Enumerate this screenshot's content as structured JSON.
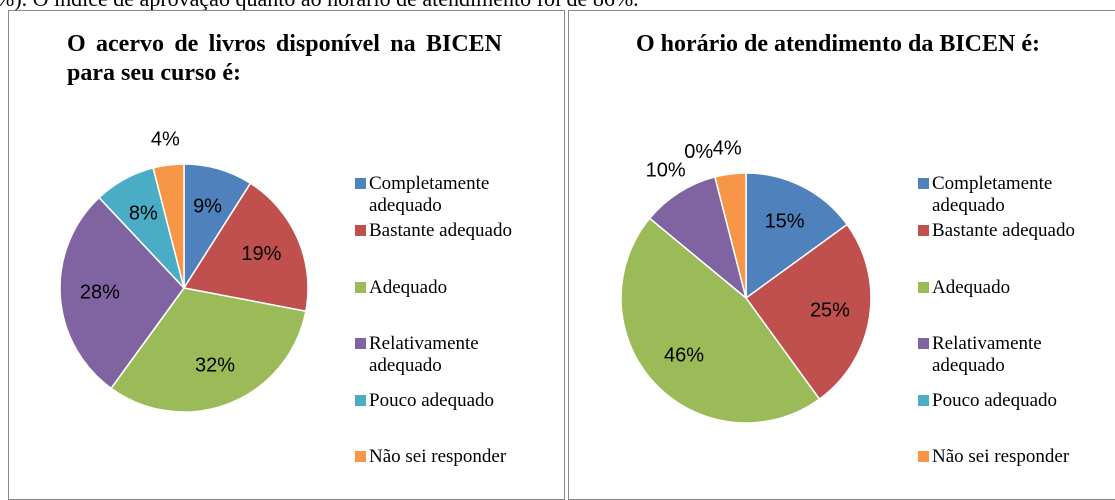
{
  "intro_text": "%). O índice de aprovação quanto ao horário de atendimento foi de 86%.",
  "chart_data": [
    {
      "type": "pie",
      "title": "O acervo de livros disponível na BICEN para seu curso é:",
      "categories": [
        "Completamente adequado",
        "Bastante adequado",
        "Adequado",
        "Relativamente adequado",
        "Pouco adequado",
        "Não sei responder"
      ],
      "values": [
        9,
        19,
        32,
        28,
        8,
        4
      ],
      "value_labels": [
        "9%",
        "19%",
        "32%",
        "28%",
        "8%",
        "4%"
      ],
      "colors": [
        "#4f81bd",
        "#c0504d",
        "#9bbb59",
        "#8064a2",
        "#4bacc6",
        "#f79646"
      ],
      "legend": "right"
    },
    {
      "type": "pie",
      "title": "O horário de atendimento da BICEN é:",
      "categories": [
        "Completamente adequado",
        "Bastante adequado",
        "Adequado",
        "Relativamente adequado",
        "Pouco adequado",
        "Não sei responder"
      ],
      "values": [
        15,
        25,
        46,
        10,
        0,
        4
      ],
      "value_labels": [
        "15%",
        "25%",
        "46%",
        "10%",
        "0%",
        "4%"
      ],
      "colors": [
        "#4f81bd",
        "#c0504d",
        "#9bbb59",
        "#8064a2",
        "#4bacc6",
        "#f79646"
      ],
      "legend": "right"
    }
  ]
}
